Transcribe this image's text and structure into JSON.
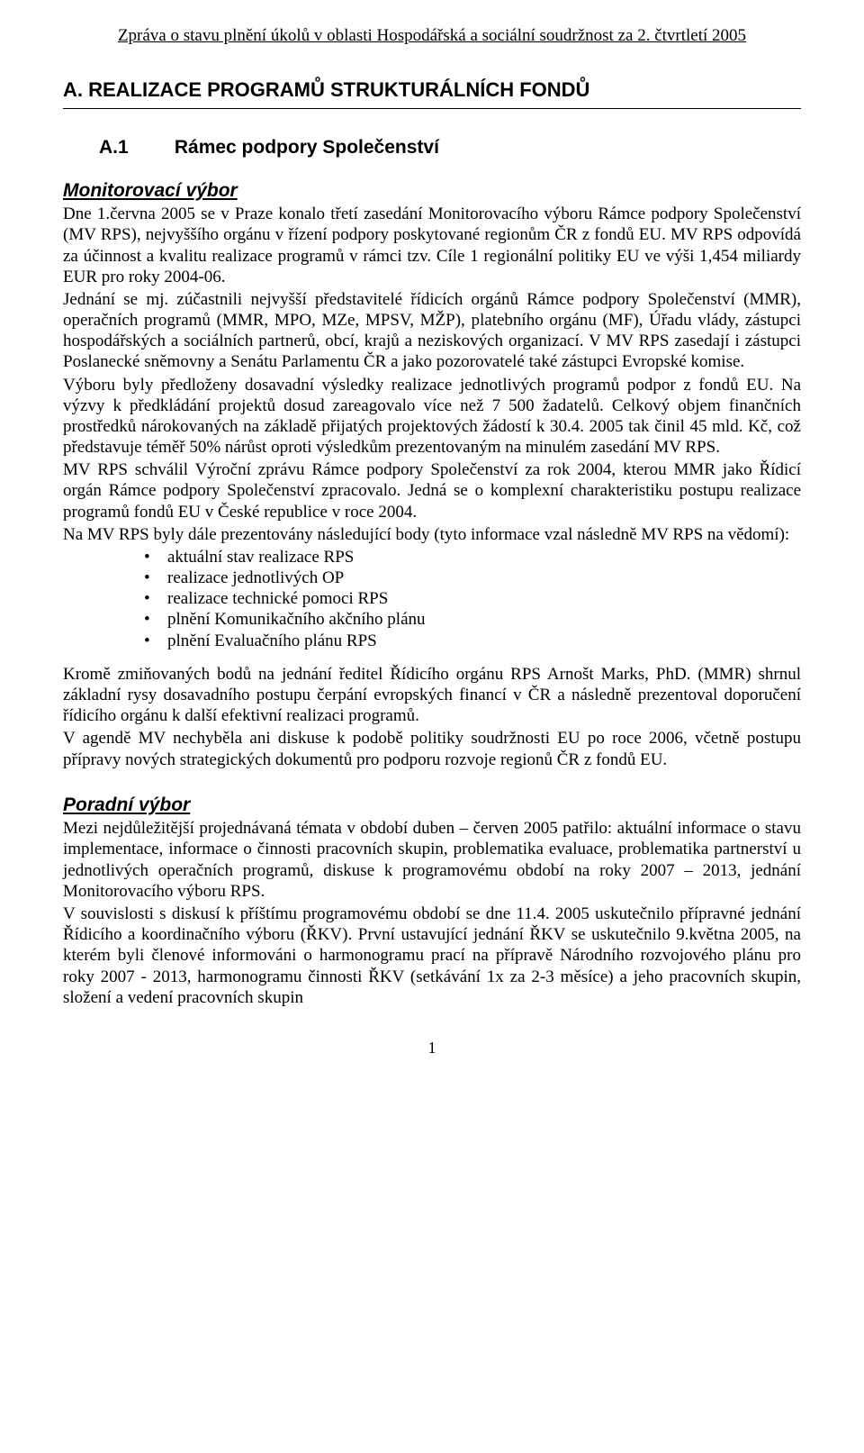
{
  "header": {
    "title": "Zpráva o stavu plnění úkolů v oblasti Hospodářská a sociální soudržnost za 2. čtvrtletí 2005"
  },
  "section_a": {
    "label": "A. REALIZACE PROGRAMŮ STRUKTURÁLNÍCH FONDŮ"
  },
  "a1": {
    "num": "A.1",
    "title": "Rámec podpory Společenství"
  },
  "monitorovaci": {
    "heading": "Monitorovací výbor",
    "p1": "Dne 1.června 2005 se v Praze konalo třetí zasedání Monitorovacího výboru Rámce podpory Společenství (MV RPS), nejvyššího orgánu v řízení podpory poskytované regionům ČR z fondů EU. MV RPS odpovídá za účinnost a kvalitu realizace programů v rámci tzv. Cíle 1 regionální politiky EU ve výši 1,454 miliardy EUR pro roky 2004-06.",
    "p2": "Jednání se mj. zúčastnili nejvyšší představitelé řídicích orgánů Rámce podpory Společenství (MMR), operačních programů (MMR, MPO, MZe, MPSV, MŽP), platebního orgánu (MF), Úřadu vlády, zástupci hospodářských a sociálních partnerů, obcí, krajů a neziskových organizací. V MV RPS zasedají i zástupci Poslanecké sněmovny a Senátu Parlamentu ČR a jako pozorovatelé také zástupci Evropské komise.",
    "p3": "Výboru byly předloženy dosavadní výsledky realizace jednotlivých programů podpor z fondů EU. Na výzvy k předkládání projektů dosud zareagovalo více než 7 500 žadatelů. Celkový objem finančních prostředků nárokovaných na základě přijatých projektových žádostí k 30.4. 2005 tak činil 45 mld. Kč, což představuje téměř 50% nárůst oproti výsledkům prezentovaným na minulém zasedání MV RPS.",
    "p4": "MV RPS schválil Výroční zprávu Rámce podpory Společenství za rok 2004, kterou MMR jako Řídicí orgán Rámce podpory Společenství zpracovalo. Jedná se o komplexní charakteristiku postupu realizace programů fondů EU v České republice v roce 2004.",
    "p5": "Na MV RPS byly dále prezentovány následující body (tyto informace vzal následně MV RPS na vědomí):",
    "bullets": [
      "aktuální stav realizace RPS",
      "realizace jednotlivých OP",
      "realizace technické pomoci RPS",
      "plnění Komunikačního akčního plánu",
      "plnění Evaluačního plánu RPS"
    ],
    "p6": "Kromě zmiňovaných bodů na jednání ředitel Řídicího orgánu RPS Arnošt Marks, PhD. (MMR) shrnul základní rysy dosavadního postupu čerpání evropských financí v ČR a následně prezentoval doporučení řídicího orgánu k další efektivní realizaci programů.",
    "p7": "V agendě MV nechyběla ani diskuse k podobě politiky soudržnosti EU po roce 2006, včetně postupu přípravy nových strategických dokumentů pro podporu rozvoje regionů ČR z fondů EU."
  },
  "poradni": {
    "heading": "Poradní výbor",
    "p1": "Mezi nejdůležitější projednávaná témata v období duben – červen 2005 patřilo: aktuální informace o stavu implementace, informace o činnosti pracovních skupin, problematika evaluace, problematika partnerství u jednotlivých operačních programů, diskuse k programovému období na roky 2007 – 2013, jednání Monitorovacího výboru RPS.",
    "p2": "V souvislosti s diskusí k příštímu programovému období se dne 11.4. 2005 uskutečnilo přípravné jednání Řídicího a koordinačního výboru (ŘKV). První ustavující jednání ŘKV se uskutečnilo 9.května 2005, na kterém byli členové informováni o harmonogramu prací na přípravě Národního rozvojového plánu pro roky 2007 - 2013, harmonogramu činnosti ŘKV (setkávání 1x za 2-3 měsíce) a jeho pracovních skupin, složení a vedení pracovních skupin"
  },
  "footer": {
    "page_number": "1"
  }
}
